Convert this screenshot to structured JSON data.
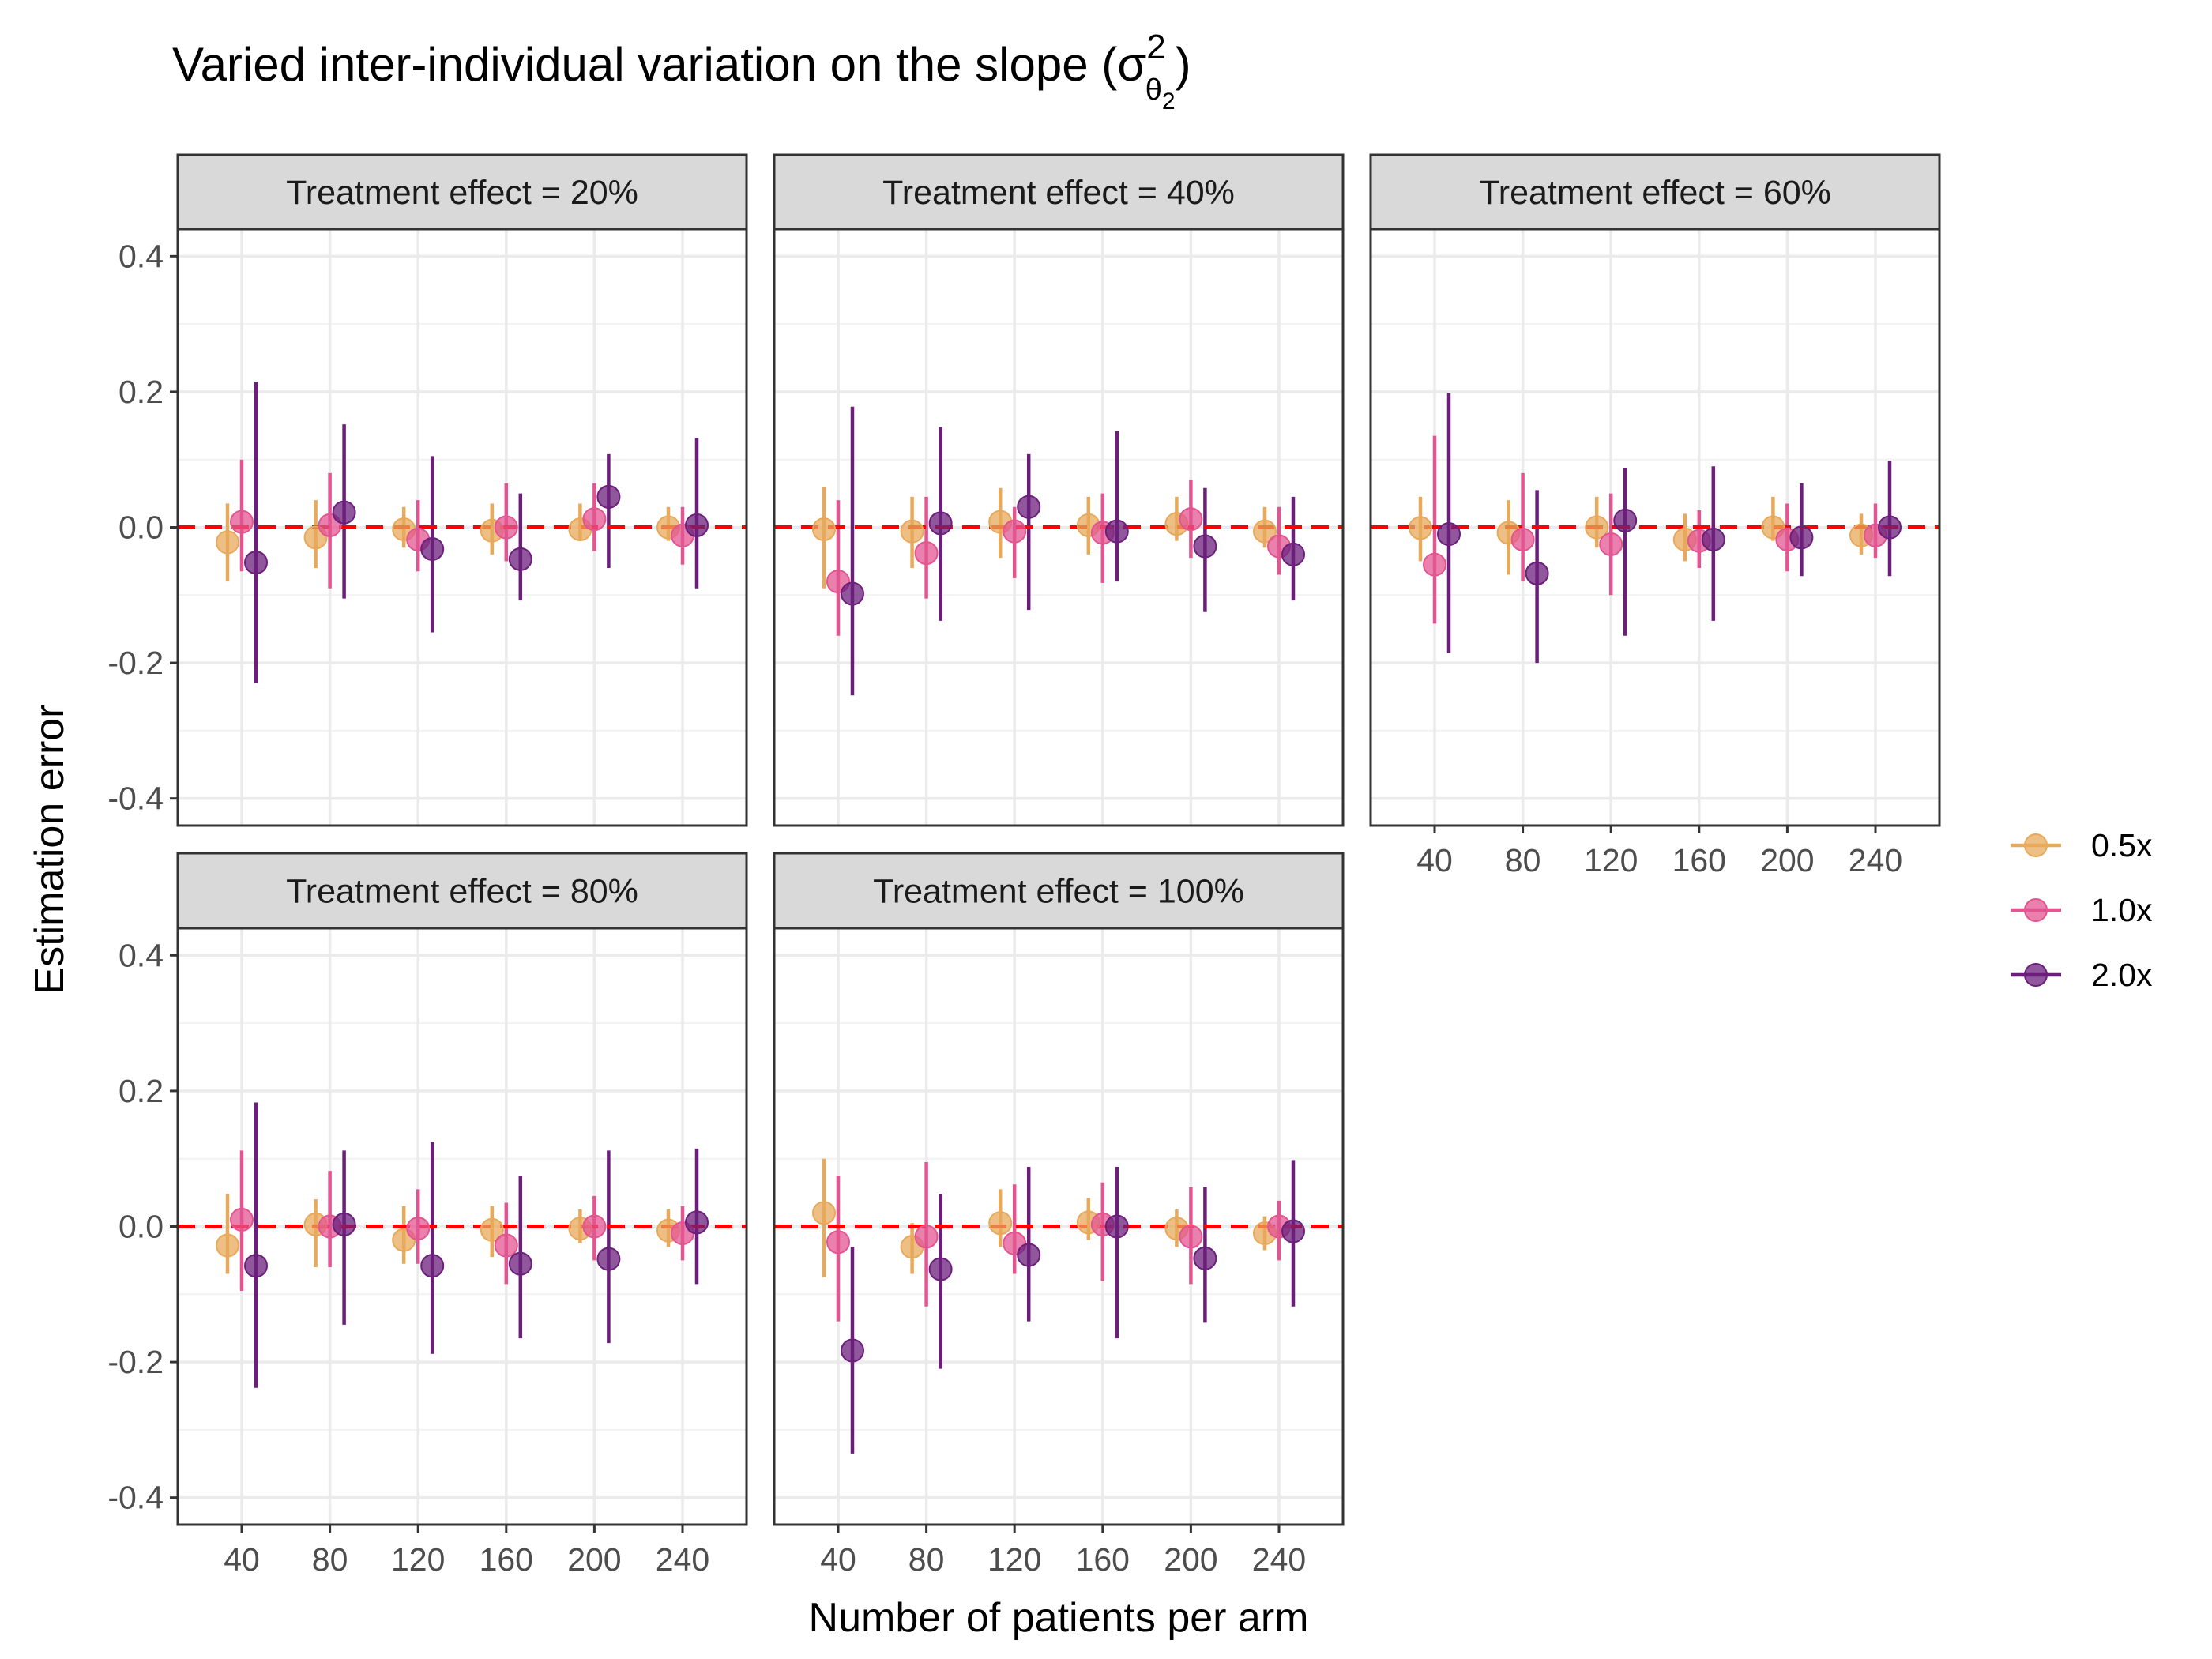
{
  "chart_data": {
    "type": "scatter",
    "title": "Varied inter-individual variation on the slope",
    "title_symbol": "(σ",
    "title_superscript": "2",
    "title_subscript_base": "θ",
    "title_subscript_index": "2",
    "title_close": ")",
    "xlabel": "Number of patients per arm",
    "ylabel": "Estimation error",
    "x_categories": [
      "40",
      "80",
      "120",
      "160",
      "200",
      "240"
    ],
    "y_ticks": [
      0.4,
      0.2,
      0.0,
      -0.2,
      -0.4
    ],
    "y_tick_labels": [
      "0.4",
      "0.2",
      "0.0",
      "-0.2",
      "-0.4"
    ],
    "ylim": [
      -0.44,
      0.44
    ],
    "reference_line": 0.0,
    "reference_line_color": "#FF0000",
    "grid": true,
    "legend_position": "right",
    "series": [
      {
        "name": "0.5x",
        "color": "#E8A95B"
      },
      {
        "name": "1.0x",
        "color": "#E25591"
      },
      {
        "name": "2.0x",
        "color": "#6B1F7B"
      }
    ],
    "facets": [
      {
        "label": "Treatment effect = 20%",
        "points": [
          [
            [
              -0.022,
              -0.08,
              0.035
            ],
            [
              -0.015,
              -0.06,
              0.04
            ],
            [
              -0.003,
              -0.03,
              0.03
            ],
            [
              -0.005,
              -0.04,
              0.035
            ],
            [
              -0.003,
              -0.02,
              0.035
            ],
            [
              0.0,
              -0.02,
              0.03
            ]
          ],
          [
            [
              0.008,
              -0.065,
              0.1
            ],
            [
              0.003,
              -0.09,
              0.08
            ],
            [
              -0.018,
              -0.065,
              0.04
            ],
            [
              0.0,
              -0.05,
              0.065
            ],
            [
              0.012,
              -0.035,
              0.065
            ],
            [
              -0.012,
              -0.055,
              0.03
            ]
          ],
          [
            [
              -0.052,
              -0.23,
              0.215
            ],
            [
              0.022,
              -0.105,
              0.152
            ],
            [
              -0.032,
              -0.155,
              0.105
            ],
            [
              -0.047,
              -0.108,
              0.05
            ],
            [
              0.045,
              -0.06,
              0.108
            ],
            [
              0.003,
              -0.09,
              0.132
            ]
          ]
        ]
      },
      {
        "label": "Treatment effect = 40%",
        "points": [
          [
            [
              -0.003,
              -0.09,
              0.06
            ],
            [
              -0.006,
              -0.06,
              0.045
            ],
            [
              0.008,
              -0.045,
              0.058
            ],
            [
              0.003,
              -0.04,
              0.045
            ],
            [
              0.005,
              -0.02,
              0.045
            ],
            [
              -0.006,
              -0.03,
              0.03
            ]
          ],
          [
            [
              -0.08,
              -0.16,
              0.04
            ],
            [
              -0.038,
              -0.105,
              0.045
            ],
            [
              -0.006,
              -0.075,
              0.03
            ],
            [
              -0.008,
              -0.082,
              0.05
            ],
            [
              0.012,
              -0.045,
              0.07
            ],
            [
              -0.028,
              -0.07,
              0.03
            ]
          ],
          [
            [
              -0.098,
              -0.248,
              0.178
            ],
            [
              0.006,
              -0.138,
              0.148
            ],
            [
              0.03,
              -0.122,
              0.108
            ],
            [
              -0.006,
              -0.08,
              0.142
            ],
            [
              -0.028,
              -0.125,
              0.058
            ],
            [
              -0.04,
              -0.108,
              0.045
            ]
          ]
        ]
      },
      {
        "label": "Treatment effect = 60%",
        "points": [
          [
            [
              -0.001,
              -0.05,
              0.045
            ],
            [
              -0.008,
              -0.07,
              0.04
            ],
            [
              0.0,
              -0.03,
              0.045
            ],
            [
              -0.018,
              -0.05,
              0.02
            ],
            [
              0.0,
              -0.02,
              0.045
            ],
            [
              -0.012,
              -0.04,
              0.02
            ]
          ],
          [
            [
              -0.055,
              -0.142,
              0.135
            ],
            [
              -0.018,
              -0.08,
              0.08
            ],
            [
              -0.025,
              -0.1,
              0.05
            ],
            [
              -0.02,
              -0.06,
              0.025
            ],
            [
              -0.018,
              -0.065,
              0.035
            ],
            [
              -0.012,
              -0.045,
              0.035
            ]
          ],
          [
            [
              -0.01,
              -0.185,
              0.198
            ],
            [
              -0.068,
              -0.2,
              0.055
            ],
            [
              0.01,
              -0.16,
              0.088
            ],
            [
              -0.018,
              -0.138,
              0.09
            ],
            [
              -0.015,
              -0.072,
              0.065
            ],
            [
              0.0,
              -0.072,
              0.098
            ]
          ]
        ]
      },
      {
        "label": "Treatment effect = 80%",
        "points": [
          [
            [
              -0.028,
              -0.07,
              0.048
            ],
            [
              0.003,
              -0.06,
              0.04
            ],
            [
              -0.02,
              -0.055,
              0.03
            ],
            [
              -0.005,
              -0.045,
              0.03
            ],
            [
              -0.003,
              -0.025,
              0.025
            ],
            [
              -0.006,
              -0.03,
              0.025
            ]
          ],
          [
            [
              0.01,
              -0.095,
              0.112
            ],
            [
              0.0,
              -0.06,
              0.082
            ],
            [
              -0.003,
              -0.055,
              0.055
            ],
            [
              -0.028,
              -0.085,
              0.035
            ],
            [
              0.0,
              -0.05,
              0.045
            ],
            [
              -0.01,
              -0.05,
              0.03
            ]
          ],
          [
            [
              -0.058,
              -0.238,
              0.183
            ],
            [
              0.003,
              -0.145,
              0.112
            ],
            [
              -0.058,
              -0.188,
              0.125
            ],
            [
              -0.055,
              -0.165,
              0.075
            ],
            [
              -0.048,
              -0.172,
              0.112
            ],
            [
              0.006,
              -0.085,
              0.115
            ]
          ]
        ]
      },
      {
        "label": "Treatment effect = 100%",
        "points": [
          [
            [
              0.02,
              -0.075,
              0.1
            ],
            [
              -0.03,
              -0.07,
              0.005
            ],
            [
              0.005,
              -0.03,
              0.055
            ],
            [
              0.006,
              -0.02,
              0.042
            ],
            [
              -0.003,
              -0.03,
              0.025
            ],
            [
              -0.01,
              -0.035,
              0.015
            ]
          ],
          [
            [
              -0.023,
              -0.14,
              0.075
            ],
            [
              -0.015,
              -0.118,
              0.095
            ],
            [
              -0.025,
              -0.07,
              0.062
            ],
            [
              0.003,
              -0.08,
              0.065
            ],
            [
              -0.015,
              -0.085,
              0.058
            ],
            [
              0.0,
              -0.05,
              0.038
            ]
          ],
          [
            [
              -0.183,
              -0.335,
              -0.03
            ],
            [
              -0.063,
              -0.21,
              0.048
            ],
            [
              -0.042,
              -0.14,
              0.088
            ],
            [
              0.0,
              -0.165,
              0.088
            ],
            [
              -0.047,
              -0.142,
              0.058
            ],
            [
              -0.007,
              -0.118,
              0.098
            ]
          ]
        ]
      }
    ]
  }
}
